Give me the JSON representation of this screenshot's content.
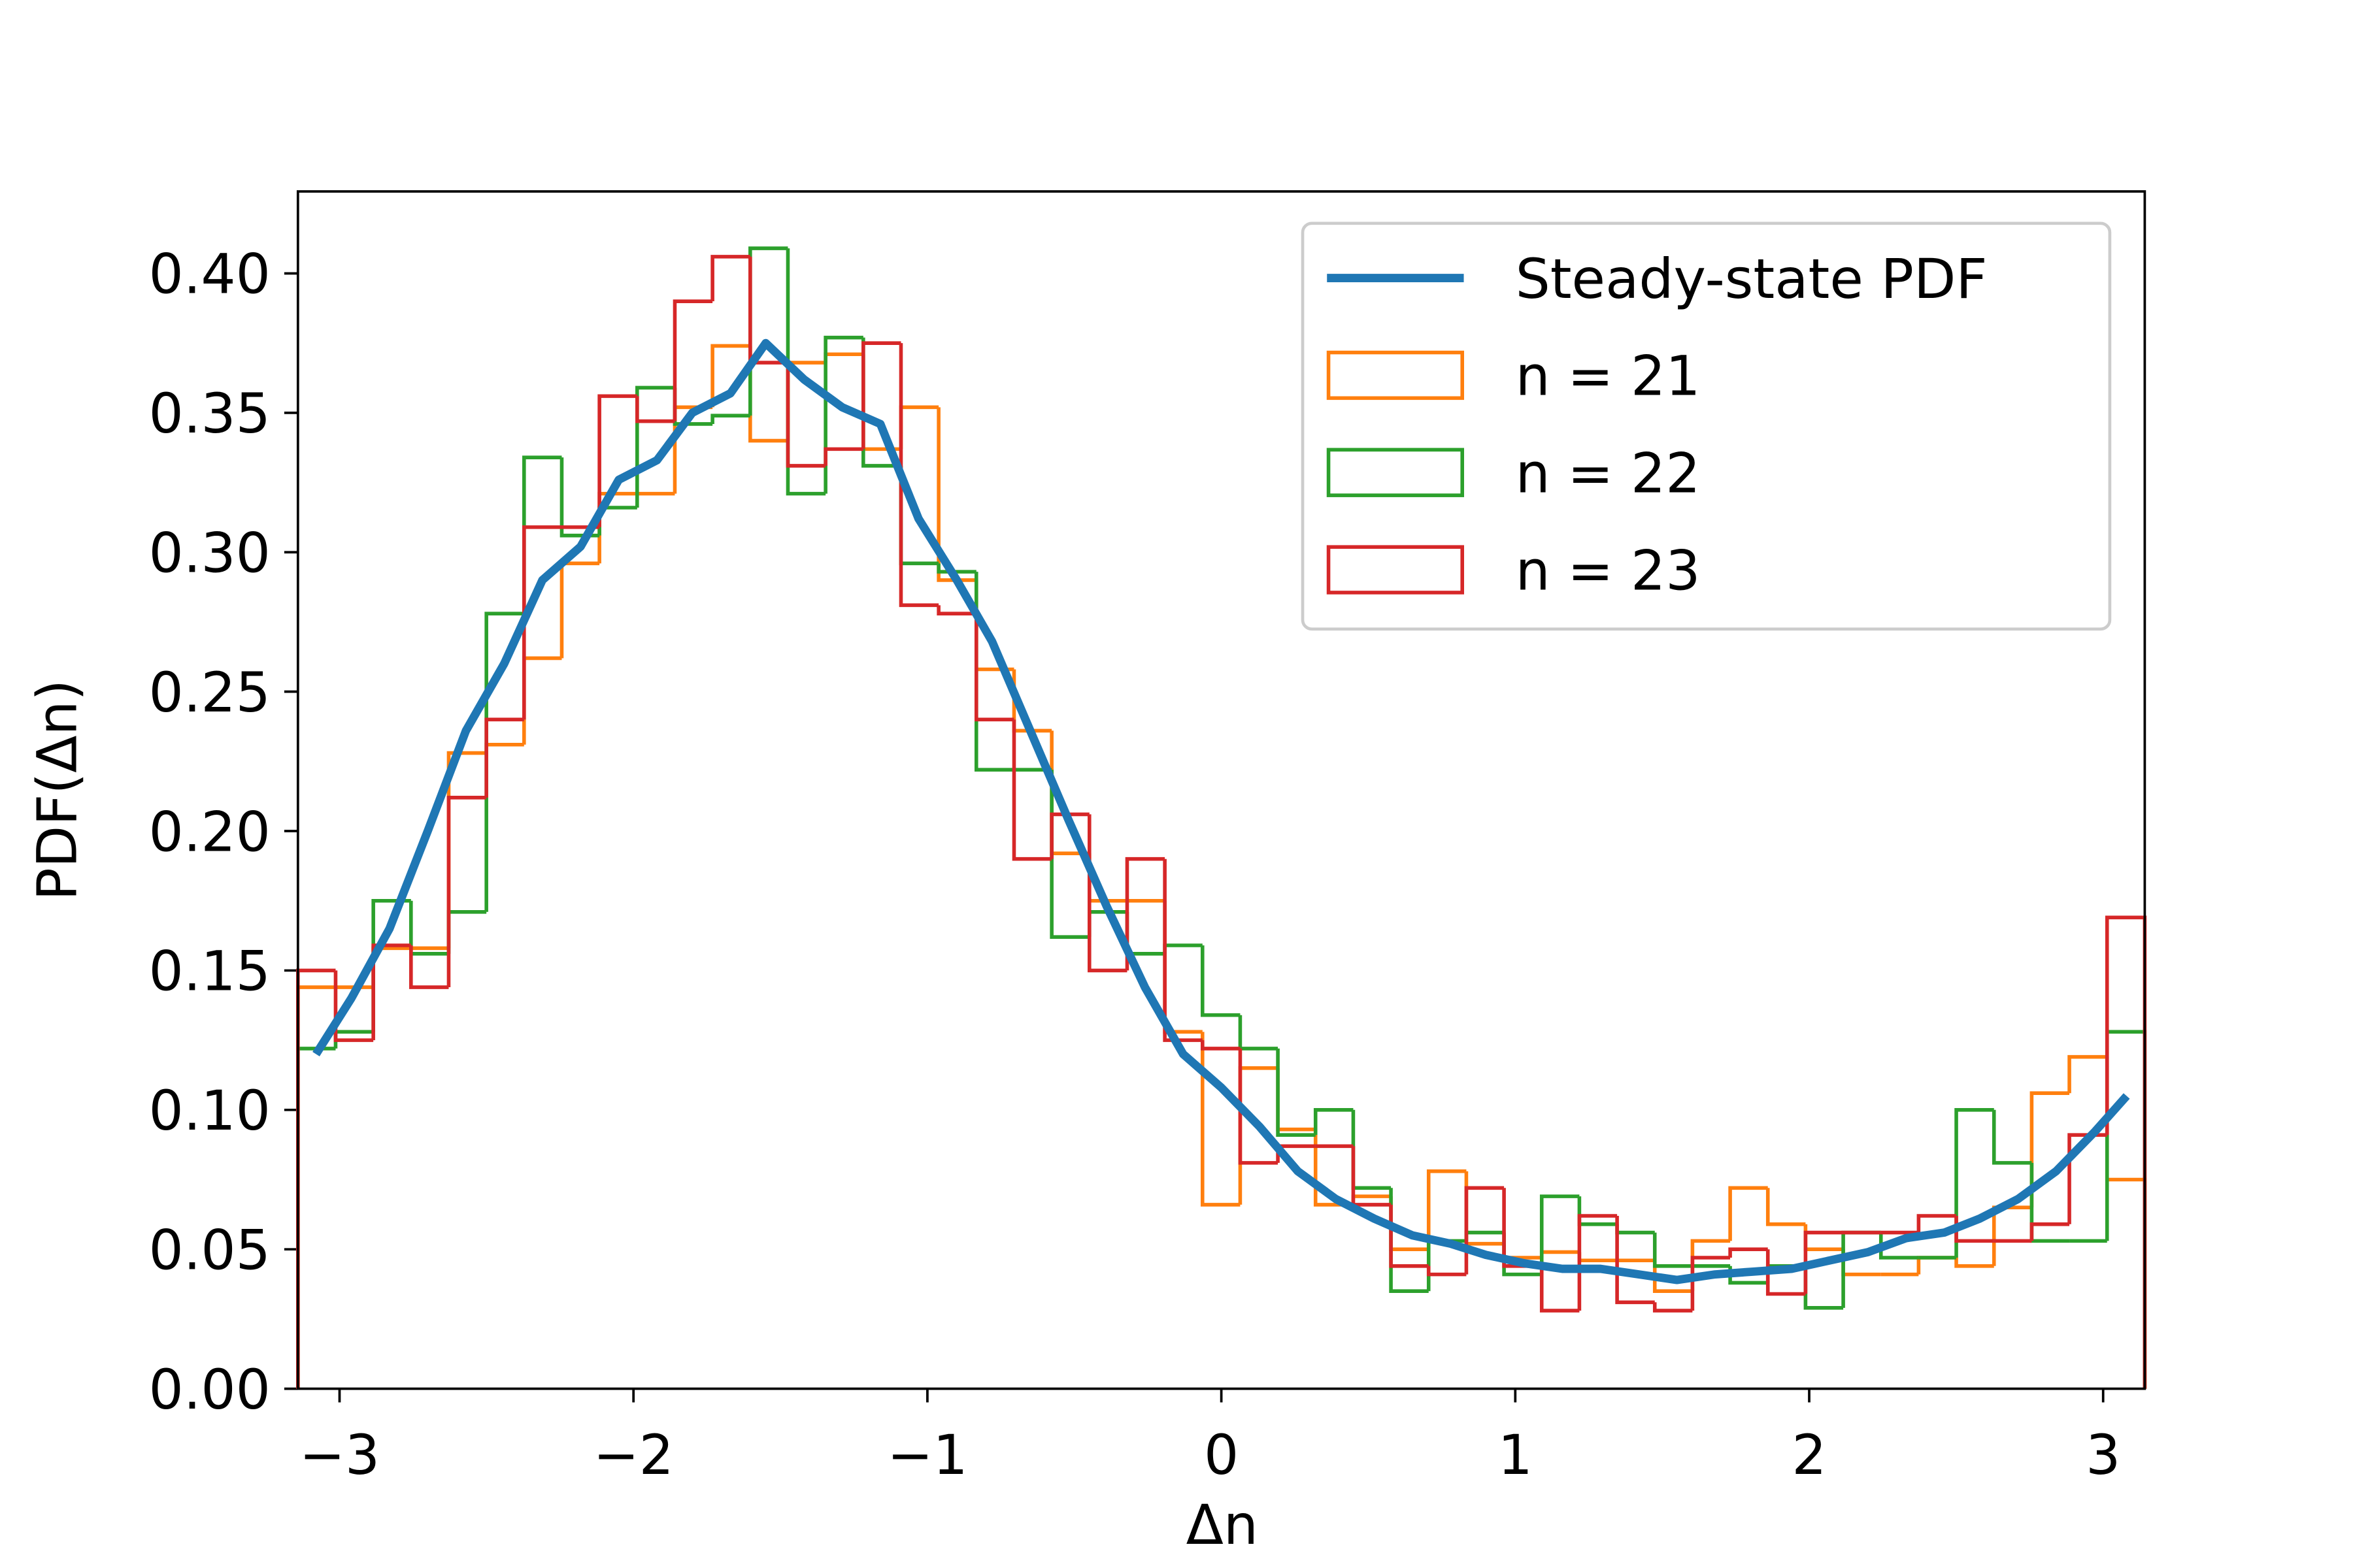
{
  "chart_data": {
    "type": "histogram",
    "xlabel": "Δn",
    "ylabel": "PDF(Δn)",
    "xlim": [
      -3.1416,
      3.1416
    ],
    "ylim": [
      0,
      0.4294
    ],
    "xticks": [
      {
        "value": -3,
        "label": "−3"
      },
      {
        "value": -2,
        "label": "−2"
      },
      {
        "value": -1,
        "label": "−1"
      },
      0,
      1,
      2,
      3
    ],
    "yticks": [
      {
        "value": 0,
        "label": "0.00"
      },
      {
        "value": 0.05,
        "label": "0.05"
      },
      {
        "value": 0.1,
        "label": "0.10"
      },
      {
        "value": 0.15,
        "label": "0.15"
      },
      {
        "value": 0.2,
        "label": "0.20"
      },
      {
        "value": 0.25,
        "label": "0.25"
      },
      {
        "value": 0.3,
        "label": "0.30"
      },
      {
        "value": 0.35,
        "label": "0.35"
      },
      {
        "value": 0.4,
        "label": "0.40"
      }
    ],
    "legend": "upper right",
    "bins": [
      -3.1416,
      -3.0134,
      -2.8851,
      -2.7569,
      -2.6287,
      -2.5004,
      -2.3722,
      -2.244,
      -2.1158,
      -1.9875,
      -1.8593,
      -1.7311,
      -1.6028,
      -1.4746,
      -1.3464,
      -1.2181,
      -1.0899,
      -0.9617,
      -0.8335,
      -0.7052,
      -0.577,
      -0.4488,
      -0.3205,
      -0.1923,
      -0.0641,
      0.0641,
      0.1923,
      0.3205,
      0.4488,
      0.577,
      0.7052,
      0.8335,
      0.9617,
      1.0899,
      1.2181,
      1.3464,
      1.4746,
      1.6028,
      1.7311,
      1.8593,
      1.9875,
      2.1158,
      2.244,
      2.3722,
      2.5004,
      2.6287,
      2.7569,
      2.8851,
      3.0134,
      3.1416
    ],
    "line": {
      "name": "Steady-state PDF",
      "color": "#1f77b4",
      "x": [
        -3.08,
        -2.96,
        -2.83,
        -2.7,
        -2.57,
        -2.44,
        -2.31,
        -2.18,
        -2.05,
        -1.92,
        -1.8,
        -1.67,
        -1.55,
        -1.42,
        -1.29,
        -1.16,
        -1.03,
        -0.9,
        -0.78,
        -0.65,
        -0.52,
        -0.39,
        -0.26,
        -0.13,
        0.0,
        0.13,
        0.26,
        0.39,
        0.52,
        0.65,
        0.78,
        0.9,
        1.03,
        1.16,
        1.29,
        1.42,
        1.55,
        1.68,
        1.81,
        1.94,
        2.07,
        2.2,
        2.33,
        2.46,
        2.58,
        2.71,
        2.84,
        2.97,
        3.08
      ],
      "values": [
        0.12,
        0.14,
        0.165,
        0.2,
        0.236,
        0.26,
        0.29,
        0.302,
        0.326,
        0.333,
        0.35,
        0.357,
        0.375,
        0.362,
        0.352,
        0.346,
        0.312,
        0.29,
        0.268,
        0.236,
        0.204,
        0.173,
        0.144,
        0.12,
        0.108,
        0.094,
        0.078,
        0.068,
        0.061,
        0.055,
        0.052,
        0.048,
        0.045,
        0.043,
        0.043,
        0.041,
        0.039,
        0.041,
        0.042,
        0.043,
        0.046,
        0.049,
        0.054,
        0.056,
        0.061,
        0.068,
        0.078,
        0.092,
        0.105
      ]
    },
    "series": [
      {
        "name": "n = 21",
        "color": "#ff7f0e",
        "values": [
          0.144,
          0.144,
          0.158,
          0.158,
          0.228,
          0.231,
          0.262,
          0.296,
          0.321,
          0.321,
          0.352,
          0.374,
          0.34,
          0.368,
          0.371,
          0.337,
          0.352,
          0.29,
          0.258,
          0.236,
          0.192,
          0.175,
          0.175,
          0.128,
          0.066,
          0.115,
          0.093,
          0.066,
          0.069,
          0.05,
          0.078,
          0.052,
          0.047,
          0.049,
          0.046,
          0.046,
          0.035,
          0.053,
          0.072,
          0.059,
          0.05,
          0.041,
          0.041,
          0.047,
          0.044,
          0.065,
          0.106,
          0.119,
          0.075
        ]
      },
      {
        "name": "n = 22",
        "color": "#2ca02c",
        "values": [
          0.122,
          0.128,
          0.175,
          0.156,
          0.171,
          0.278,
          0.334,
          0.306,
          0.316,
          0.359,
          0.346,
          0.349,
          0.409,
          0.321,
          0.377,
          0.331,
          0.296,
          0.293,
          0.222,
          0.222,
          0.162,
          0.171,
          0.156,
          0.159,
          0.134,
          0.122,
          0.091,
          0.1,
          0.072,
          0.035,
          0.053,
          0.056,
          0.041,
          0.069,
          0.059,
          0.056,
          0.044,
          0.044,
          0.038,
          0.044,
          0.029,
          0.056,
          0.047,
          0.047,
          0.1,
          0.081,
          0.053,
          0.053,
          0.128
        ]
      },
      {
        "name": "n = 23",
        "color": "#d62728",
        "values": [
          0.15,
          0.125,
          0.159,
          0.144,
          0.212,
          0.24,
          0.309,
          0.309,
          0.356,
          0.347,
          0.39,
          0.406,
          0.368,
          0.331,
          0.337,
          0.375,
          0.281,
          0.278,
          0.24,
          0.19,
          0.206,
          0.15,
          0.19,
          0.125,
          0.122,
          0.081,
          0.087,
          0.087,
          0.066,
          0.044,
          0.041,
          0.072,
          0.044,
          0.028,
          0.062,
          0.031,
          0.028,
          0.047,
          0.05,
          0.034,
          0.056,
          0.056,
          0.056,
          0.062,
          0.053,
          0.053,
          0.059,
          0.091,
          0.169
        ]
      }
    ]
  }
}
